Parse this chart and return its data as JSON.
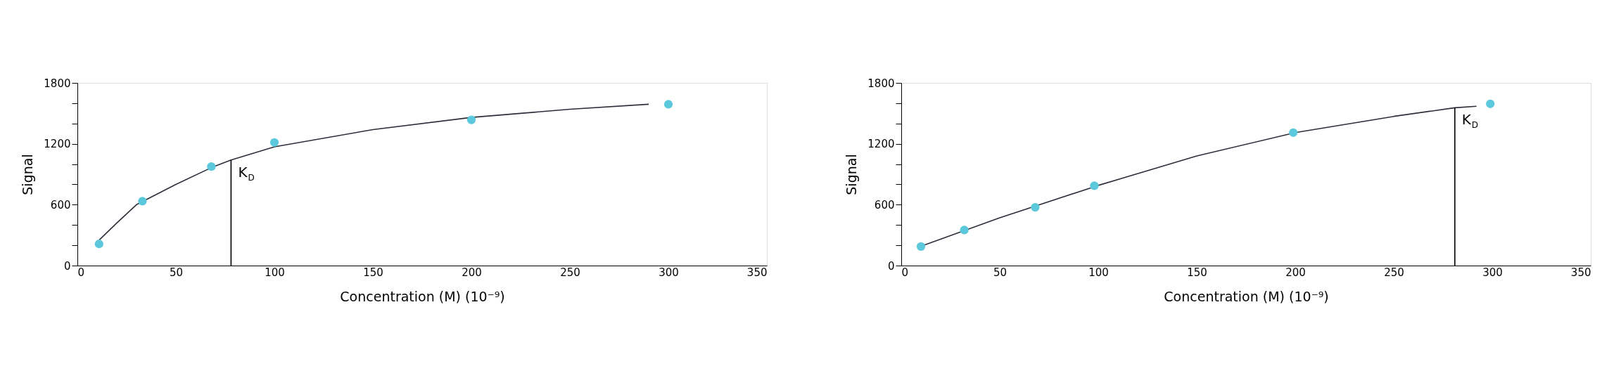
{
  "chart_data": [
    {
      "type": "line",
      "xlabel": "Concentration (M) (10⁻⁹)",
      "ylabel": "Signal",
      "xlim": [
        0,
        350
      ],
      "ylim": [
        0,
        1800
      ],
      "xticks": [
        0,
        50,
        100,
        150,
        200,
        250,
        300,
        350
      ],
      "yticks": [
        0,
        {
          "value": 200,
          "label": null
        },
        {
          "value": 400,
          "label": null
        },
        600,
        {
          "value": 800,
          "label": null
        },
        {
          "value": 1000,
          "label": null
        },
        1200,
        {
          "value": 1400,
          "label": null
        },
        {
          "value": 1600,
          "label": null
        },
        1800
      ],
      "grid": false,
      "series": [
        {
          "color": "#2b2f3a",
          "marker": "none",
          "x": [
            11,
            20,
            30,
            50,
            68,
            78,
            100,
            150,
            200,
            250,
            290
          ],
          "values": [
            250,
            420,
            600,
            800,
            965,
            1040,
            1170,
            1340,
            1460,
            1540,
            1590
          ]
        },
        {
          "type": "scatter",
          "color": "#5bc8dc",
          "marker": "circle",
          "x": [
            11,
            33,
            68,
            100,
            200,
            300
          ],
          "values": [
            213,
            634,
            975,
            1213,
            1436,
            1589
          ]
        },
        {
          "color": "#000000",
          "marker": "none",
          "x": [
            78,
            78
          ],
          "values": [
            0,
            1040
          ]
        }
      ],
      "annotations": [
        {
          "text": "K$_{D}$",
          "x": 78,
          "y": 1040
        }
      ]
    },
    {
      "type": "line",
      "xlabel": "Concentration (M) (10⁻⁹)",
      "ylabel": "Signal",
      "xlim": [
        0,
        350
      ],
      "ylim": [
        0,
        1800
      ],
      "xticks": [
        0,
        50,
        100,
        150,
        200,
        250,
        300,
        350
      ],
      "yticks": [
        0,
        {
          "value": 200,
          "label": null
        },
        {
          "value": 400,
          "label": null
        },
        600,
        {
          "value": 800,
          "label": null
        },
        {
          "value": 1000,
          "label": null
        },
        1200,
        {
          "value": 1400,
          "label": null
        },
        {
          "value": 1600,
          "label": null
        },
        1800
      ],
      "grid": false,
      "series": [
        {
          "color": "#2b2f3a",
          "marker": "none",
          "x": [
            10,
            50,
            100,
            150,
            200,
            250,
            281,
            292
          ],
          "values": [
            190,
            470,
            790,
            1080,
            1310,
            1470,
            1555,
            1570
          ]
        },
        {
          "type": "scatter",
          "color": "#5bc8dc",
          "marker": "circle",
          "x": [
            10,
            32,
            68,
            98,
            199,
            299
          ],
          "values": [
            188,
            350,
            574,
            787,
            1310,
            1594
          ]
        },
        {
          "color": "#000000",
          "marker": "none",
          "x": [
            281,
            281
          ],
          "values": [
            0,
            1555
          ]
        }
      ],
      "annotations": [
        {
          "text": "K$_{D}$",
          "x": 281,
          "y": 1555
        }
      ]
    }
  ]
}
